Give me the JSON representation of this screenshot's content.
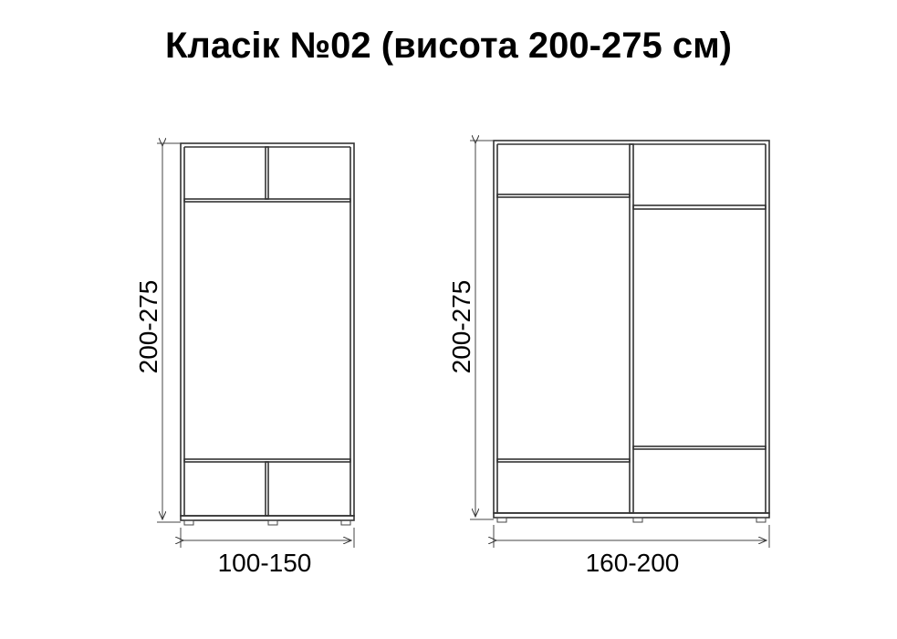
{
  "title": "Класік №02 (висота 200-275 см)",
  "wardrobe_left": {
    "height_label": "200-275",
    "width_label": "100-150"
  },
  "wardrobe_right": {
    "height_label": "200-275",
    "width_label": "160-200"
  }
}
